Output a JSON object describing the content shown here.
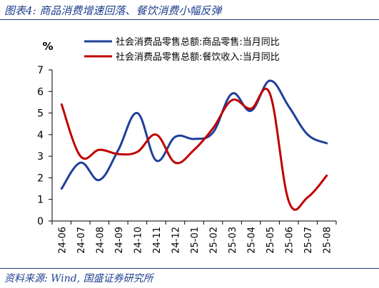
{
  "figure": {
    "title": "图表4:  商品消费增速回落、餐饮消费小幅反弹",
    "source": "资料来源:  Wind,  国盛证券研究所"
  },
  "chart_data": {
    "type": "line",
    "ylabel": "%",
    "ylim": [
      0,
      7
    ],
    "yticks": [
      0,
      1,
      2,
      3,
      4,
      5,
      6,
      7
    ],
    "grid": false,
    "legend_position": "top",
    "categories": [
      "24-06",
      "24-07",
      "24-08",
      "24-09",
      "24-10",
      "24-11",
      "24-12",
      "25-01",
      "25-02",
      "25-03",
      "25-04",
      "25-05",
      "25-06",
      "25-07",
      "25-08"
    ],
    "series": [
      {
        "name": "社会消费品零售总额:商品零售:当月同比",
        "color": "#1f3f9a",
        "values": [
          1.5,
          2.7,
          1.9,
          3.3,
          5.0,
          2.8,
          3.9,
          3.8,
          4.1,
          5.9,
          5.1,
          6.5,
          5.3,
          4.0,
          3.6
        ]
      },
      {
        "name": "社会消费品零售总额:餐饮收入:当月同比",
        "color": "#c00000",
        "values": [
          5.4,
          3.0,
          3.3,
          3.1,
          3.2,
          4.0,
          2.7,
          3.3,
          4.3,
          5.6,
          5.2,
          5.9,
          0.9,
          1.1,
          2.1
        ]
      }
    ]
  }
}
